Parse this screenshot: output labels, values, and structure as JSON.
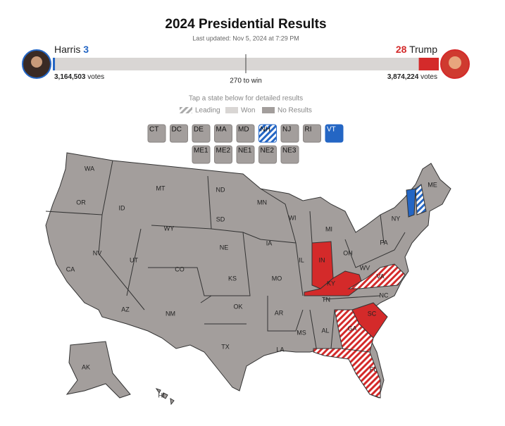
{
  "header": {
    "title": "2024 Presidential Results",
    "updated": "Last updated: Nov 5, 2024 at 7:29 PM"
  },
  "harris": {
    "name": "Harris",
    "electoral": 3,
    "votes": "3,164,503",
    "votes_unit": "votes",
    "color": "#2466c4"
  },
  "trump": {
    "name": "Trump",
    "electoral": 28,
    "votes": "3,874,224",
    "votes_unit": "votes",
    "color": "#d42a2a"
  },
  "to_win": {
    "value": 270,
    "label": "270 to win"
  },
  "hint": "Tap a state below for detailed results",
  "legend": [
    "Leading",
    "Won",
    "No Results"
  ],
  "map_color": "#a39e9c",
  "buttons": [
    {
      "abbr": "CT"
    },
    {
      "abbr": "DC"
    },
    {
      "abbr": "DE"
    },
    {
      "abbr": "MA"
    },
    {
      "abbr": "MD"
    },
    {
      "abbr": "NH",
      "color": "#2466c4",
      "hatched": true
    },
    {
      "abbr": "NJ"
    },
    {
      "abbr": "RI"
    },
    {
      "abbr": "VT",
      "color": "#2466c4",
      "hatched": false
    }
  ],
  "buttons_row2": [
    {
      "abbr": "ME1"
    },
    {
      "abbr": "ME2"
    },
    {
      "abbr": "NE1"
    },
    {
      "abbr": "NE2"
    },
    {
      "abbr": "NE3"
    }
  ],
  "states": [
    {
      "abbr": "WA"
    },
    {
      "abbr": "OR"
    },
    {
      "abbr": "CA"
    },
    {
      "abbr": "NV"
    },
    {
      "abbr": "ID"
    },
    {
      "abbr": "MT"
    },
    {
      "abbr": "WY"
    },
    {
      "abbr": "UT"
    },
    {
      "abbr": "AZ"
    },
    {
      "abbr": "CO"
    },
    {
      "abbr": "NM"
    },
    {
      "abbr": "ND"
    },
    {
      "abbr": "SD"
    },
    {
      "abbr": "NE"
    },
    {
      "abbr": "KS"
    },
    {
      "abbr": "OK"
    },
    {
      "abbr": "TX"
    },
    {
      "abbr": "MN"
    },
    {
      "abbr": "IA"
    },
    {
      "abbr": "MO"
    },
    {
      "abbr": "AR"
    },
    {
      "abbr": "LA"
    },
    {
      "abbr": "WI"
    },
    {
      "abbr": "IL"
    },
    {
      "abbr": "MI"
    },
    {
      "abbr": "IN",
      "color": "#d42a2a",
      "hatched": false
    },
    {
      "abbr": "OH"
    },
    {
      "abbr": "KY",
      "color": "#d42a2a",
      "hatched": false
    },
    {
      "abbr": "TN"
    },
    {
      "abbr": "MS"
    },
    {
      "abbr": "AL"
    },
    {
      "abbr": "GA",
      "color": "#d42a2a",
      "hatched": true
    },
    {
      "abbr": "FL",
      "color": "#d42a2a",
      "hatched": true
    },
    {
      "abbr": "SC",
      "color": "#d42a2a",
      "hatched": false
    },
    {
      "abbr": "NC"
    },
    {
      "abbr": "VA",
      "color": "#d42a2a",
      "hatched": true
    },
    {
      "abbr": "WV"
    },
    {
      "abbr": "PA"
    },
    {
      "abbr": "NY"
    },
    {
      "abbr": "ME"
    },
    {
      "abbr": "AK"
    },
    {
      "abbr": "HI"
    }
  ]
}
